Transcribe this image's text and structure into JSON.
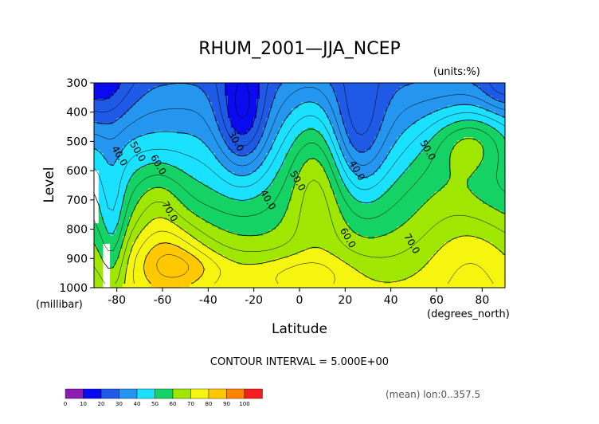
{
  "chart_data": {
    "type": "contour",
    "title": "RHUM_2001—JJA_NCEP",
    "units_label": "(units:%)",
    "xlabel": "Latitude",
    "x_units": "(degrees_north)",
    "ylabel": "Level",
    "y_units": "(millibar)",
    "xlim": [
      -90,
      90
    ],
    "ylim": [
      1000,
      300
    ],
    "x_ticks": [
      "-80",
      "-60",
      "-40",
      "-20",
      "0",
      "20",
      "40",
      "60",
      "80"
    ],
    "y_ticks": [
      "300",
      "400",
      "500",
      "600",
      "700",
      "800",
      "900",
      "1000"
    ],
    "contour_interval_text": "CONTOUR INTERVAL = 5.000E+00",
    "footnote": "(mean) lon:0..357.5",
    "contour_labels": [
      {
        "text": "40.0",
        "x": -80,
        "y": 555
      },
      {
        "text": "50.0",
        "x": -72,
        "y": 540
      },
      {
        "text": "60.0",
        "x": -63,
        "y": 585
      },
      {
        "text": "70.0",
        "x": -58,
        "y": 745
      },
      {
        "text": "30.0",
        "x": -29,
        "y": 505
      },
      {
        "text": "40.0",
        "x": -15,
        "y": 705
      },
      {
        "text": "50.0",
        "x": -2,
        "y": 640
      },
      {
        "text": "40.0",
        "x": 24,
        "y": 605
      },
      {
        "text": "60.0",
        "x": 20,
        "y": 835
      },
      {
        "text": "70.0",
        "x": 48,
        "y": 855
      },
      {
        "text": "50.0",
        "x": 55,
        "y": 535
      }
    ],
    "colorbar": {
      "levels": [
        "0",
        "10",
        "20",
        "30",
        "40",
        "50",
        "60",
        "70",
        "80",
        "90",
        "100"
      ],
      "colors": [
        "#8c1cb0",
        "#0a0af0",
        "#1e5ae6",
        "#2496f0",
        "#19e1ff",
        "#14d264",
        "#9fe600",
        "#f5f50f",
        "#ffc800",
        "#ff8200",
        "#f51e1e"
      ]
    }
  }
}
